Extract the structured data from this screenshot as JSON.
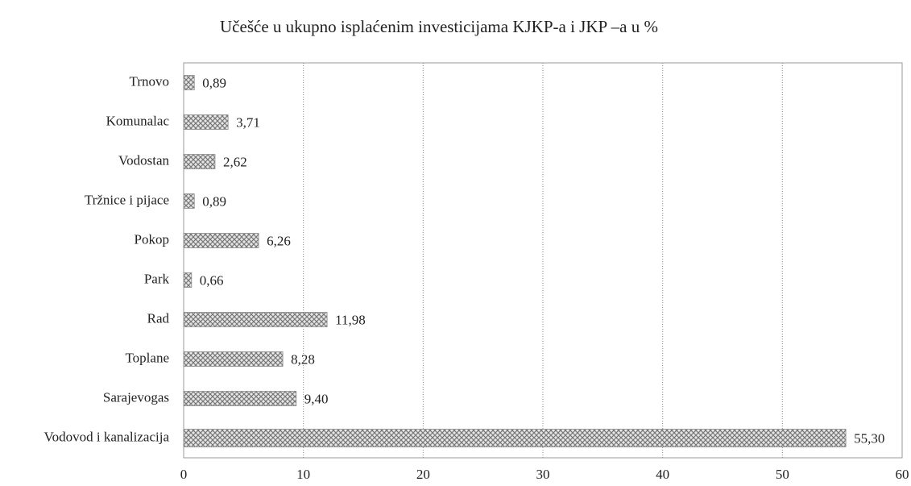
{
  "chart_data": {
    "type": "barh",
    "title": "Učešće u ukupno isplaćenim investicijama KJKP-a i JKP –a u %",
    "categories": [
      "Trnovo",
      "Komunalac",
      "Vodostan",
      "Tržnice i pijace",
      "Pokop",
      "Park",
      "Rad",
      "Toplane",
      "Sarajevogas",
      "Vodovod i kanalizacija"
    ],
    "values": [
      0.89,
      3.71,
      2.62,
      0.89,
      6.26,
      0.66,
      11.98,
      8.28,
      9.4,
      55.3
    ],
    "value_labels": [
      "0,89",
      "3,71",
      "2,62",
      "0,89",
      "6,26",
      "0,66",
      "11,98",
      "8,28",
      "9,40",
      "55,30"
    ],
    "color": "#8a8a8a",
    "xlim": [
      0,
      60
    ],
    "xticks": [
      0,
      10,
      20,
      30,
      40,
      50,
      60
    ],
    "grid": true
  }
}
